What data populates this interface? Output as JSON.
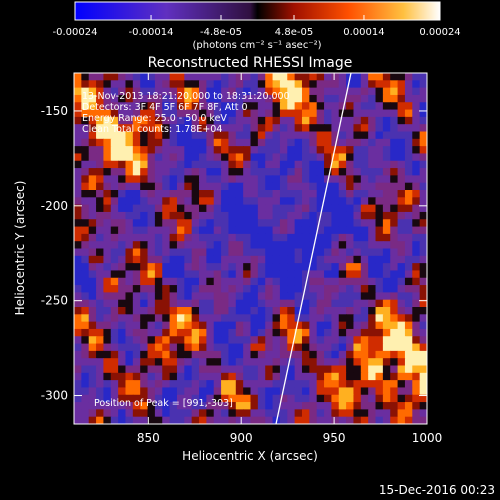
{
  "chart_data": {
    "type": "heatmap",
    "title": "Reconstructed RHESSI Image",
    "xlabel": "Heliocentric X (arcsec)",
    "ylabel": "Heliocentric Y (arcsec)",
    "xlim": [
      810,
      1000
    ],
    "ylim": [
      -315,
      -130
    ],
    "x_ticks": [
      850,
      900,
      950,
      1000
    ],
    "x_tick_labels": [
      "850",
      "900",
      "950",
      "1000"
    ],
    "y_ticks": [
      -150,
      -200,
      -250,
      -300
    ],
    "y_tick_labels": [
      "-150",
      "-200",
      "-250",
      "-300"
    ],
    "colorbar": {
      "min": -0.00024,
      "max": 0.00024,
      "ticks": [
        -0.00024,
        -0.00014,
        -4.8e-05,
        4.8e-05,
        0.00014,
        0.00024
      ],
      "tick_labels": [
        "-0.00024",
        "-0.00014",
        "-4.8e-05",
        "4.8e-05",
        "0.00014",
        "0.00024"
      ],
      "units": "(photons cm⁻² s⁻¹ asec⁻²)"
    },
    "annotations": [
      "13-Nov-2013 18:21:20.000 to 18:31:20.000",
      "Detectors: 3F 4F 5F 6F 7F 8F, Att 0",
      "Energy Range: 25.0 - 50.0 keV",
      "Clean     Total counts: 1.78E+04"
    ],
    "peak": {
      "label": "Position of Peak = [991,-303]",
      "x": 991,
      "y": -303
    }
  },
  "footer": {
    "timestamp": "15-Dec-2016 00:23"
  },
  "colors": {
    "background": "#000000",
    "colormap": [
      "#0000ff",
      "#4030d0",
      "#6a2aa6",
      "#902a80",
      "#000000",
      "#a01000",
      "#ff4400",
      "#ffb000",
      "#ffffff"
    ]
  }
}
